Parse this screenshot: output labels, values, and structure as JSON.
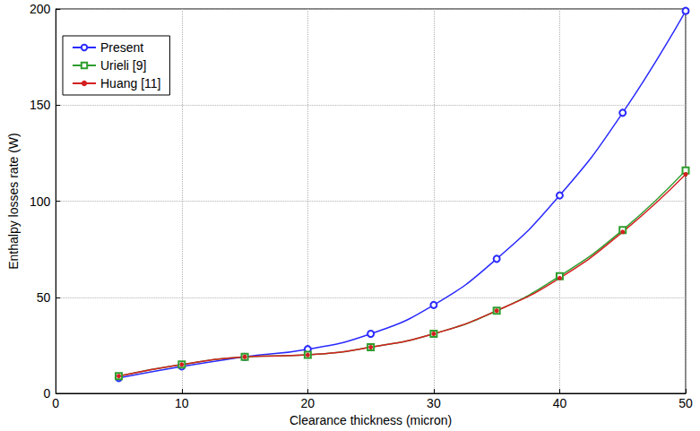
{
  "chart_data": {
    "type": "line",
    "x_label": "Clearance thickness (micron)",
    "y_label": "Enthalpy losses rate (W)",
    "x": [
      5,
      10,
      15,
      20,
      25,
      30,
      35,
      40,
      45,
      50
    ],
    "series": [
      {
        "name": "Present",
        "color": "#2a2aff",
        "marker": "circle",
        "values": [
          8,
          14,
          19,
          23,
          31,
          46,
          70,
          103,
          146,
          199
        ]
      },
      {
        "name": "Urieli [9]",
        "color": "#2e9e2e",
        "marker": "square",
        "values": [
          9,
          15,
          19,
          20,
          24,
          31,
          43,
          61,
          85,
          116
        ]
      },
      {
        "name": "Huang [11]",
        "color": "#d42020",
        "marker": "dot",
        "values": [
          9,
          15,
          19,
          20,
          24,
          31,
          43,
          60,
          84,
          114
        ]
      }
    ],
    "xlim": [
      0,
      50
    ],
    "xticks": [
      0,
      10,
      20,
      30,
      40,
      50
    ],
    "ylim": [
      0,
      200
    ],
    "yticks": [
      0,
      50,
      100,
      150,
      200
    ],
    "grid": true,
    "legend": "upper left"
  }
}
